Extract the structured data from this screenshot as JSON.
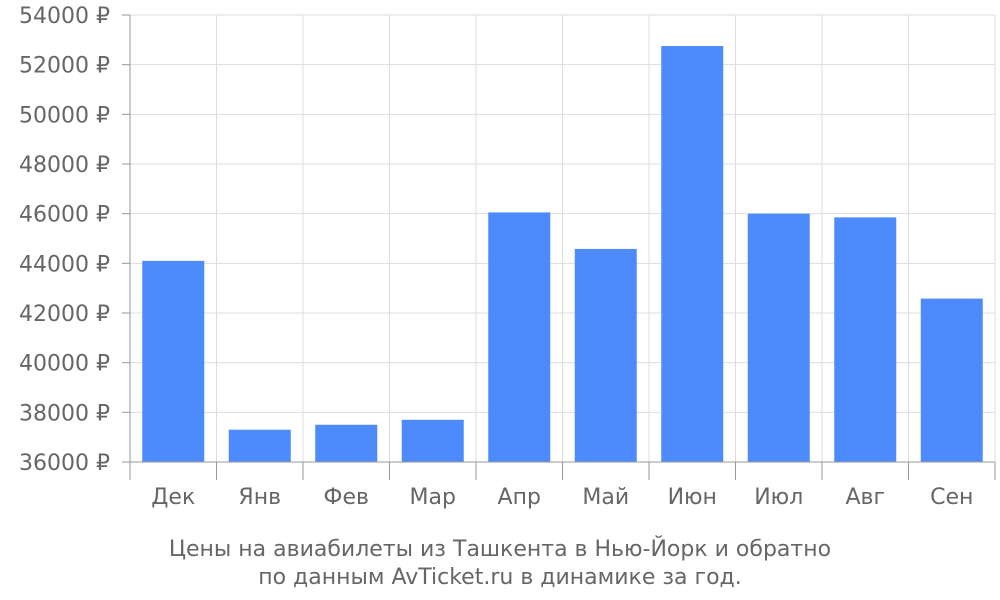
{
  "chart_data": {
    "type": "bar",
    "categories": [
      "Дек",
      "Янв",
      "Фев",
      "Мар",
      "Апр",
      "Май",
      "Июн",
      "Июл",
      "Авг",
      "Сен"
    ],
    "values": [
      44100,
      37300,
      37500,
      37700,
      46050,
      44580,
      52750,
      46000,
      45850,
      42580
    ],
    "ylim": [
      36000,
      54000
    ],
    "yticks": [
      36000,
      38000,
      40000,
      42000,
      44000,
      46000,
      48000,
      50000,
      52000,
      54000
    ],
    "ytick_labels": [
      "36000 ₽",
      "38000 ₽",
      "40000 ₽",
      "42000 ₽",
      "44000 ₽",
      "46000 ₽",
      "48000 ₽",
      "50000 ₽",
      "52000 ₽",
      "54000 ₽"
    ],
    "title": "",
    "xlabel": "",
    "ylabel": "",
    "caption_lines": [
      "Цены на авиабилеты из Ташкента в Нью-Йорк и обратно",
      "по данным AvTicket.ru в динамике за год."
    ],
    "grid": true,
    "legend": "none",
    "bar_color": "#4d8afb",
    "grid_color": "#dddddd",
    "axis_color": "#999999",
    "text_color": "#666666"
  }
}
